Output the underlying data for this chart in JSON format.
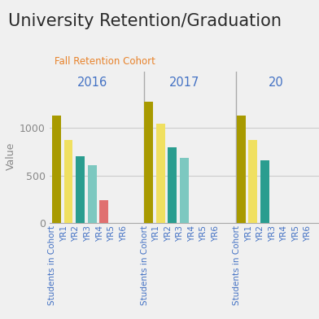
{
  "title": "University Retention/Graduation",
  "subtitle": "Fall Retention Cohort",
  "subtitle_color": "#e8822a",
  "title_bg": "#d4d4d4",
  "plot_bg": "#f0f0f0",
  "years": [
    "2016",
    "2017",
    "20"
  ],
  "x_labels": [
    "Students in Cohort",
    "YR1",
    "YR2",
    "YR3",
    "YR4",
    "YR5",
    "YR6"
  ],
  "year_label_color": "#4472c4",
  "ylabel": "Value",
  "ylim": [
    0,
    1400
  ],
  "yticks": [
    0,
    500,
    1000
  ],
  "data": {
    "2016": [
      1130,
      870,
      700,
      610,
      240,
      0,
      0
    ],
    "2017": [
      1270,
      1045,
      790,
      680,
      0,
      0,
      0
    ],
    "20": [
      1130,
      870,
      660,
      0,
      0,
      0,
      0
    ]
  },
  "bar_colors": {
    "Students in Cohort": "#a89a00",
    "YR1": "#f0e060",
    "YR2": "#2a9d8f",
    "YR3": "#7dc8c0",
    "YR4": "#e07070",
    "YR5": "#bbbbbb",
    "YR6": "#bbbbbb"
  },
  "grid_color": "#cccccc",
  "divider_color": "#aaaaaa",
  "tick_color": "#4472c4",
  "ylabel_color": "#888888",
  "ytick_color": "#888888"
}
